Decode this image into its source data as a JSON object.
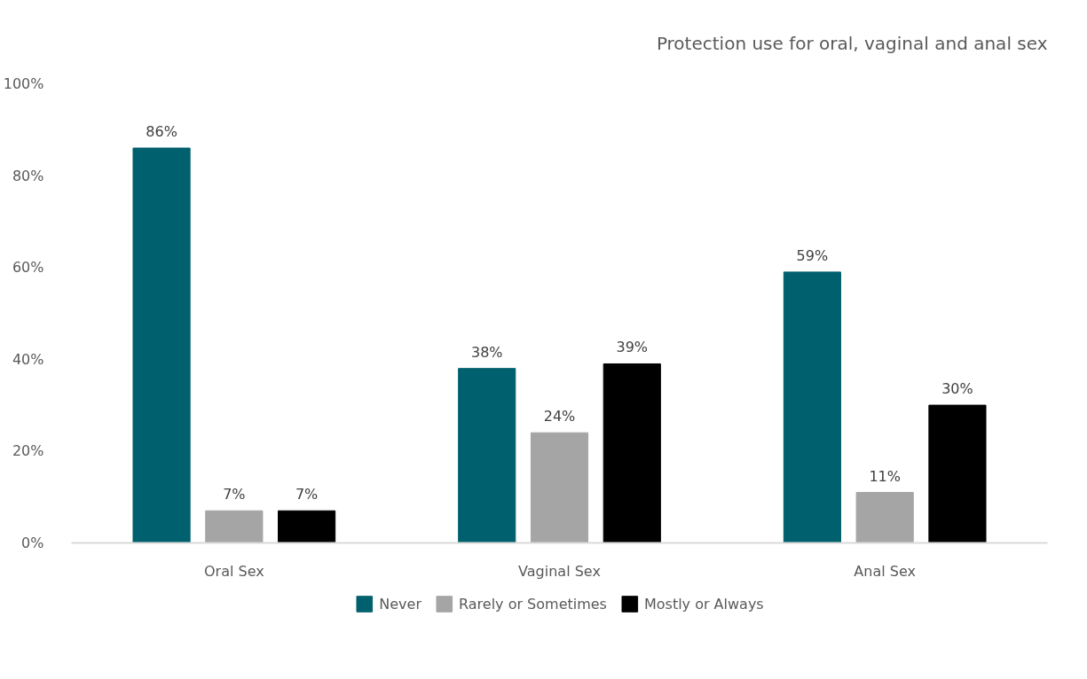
{
  "chart_data": {
    "type": "bar",
    "title": "Protection use for oral, vaginal and anal sex",
    "categories": [
      "Oral Sex",
      "Vaginal Sex",
      "Anal Sex"
    ],
    "series": [
      {
        "name": "Never",
        "color": "#00606e",
        "values": [
          86,
          38,
          59
        ],
        "value_labels": [
          "86%",
          "38%",
          "59%"
        ]
      },
      {
        "name": "Rarely or Sometimes",
        "color": "#a5a5a5",
        "values": [
          7,
          24,
          11
        ],
        "value_labels": [
          "7%",
          "24%",
          "11%"
        ]
      },
      {
        "name": "Mostly or Always",
        "color": "#000000",
        "values": [
          7,
          39,
          30
        ],
        "value_labels": [
          "7%",
          "39%",
          "30%"
        ]
      }
    ],
    "ylim": [
      0,
      100
    ],
    "yticks": [
      {
        "value": 0,
        "label": "0%"
      },
      {
        "value": 20,
        "label": "20%"
      },
      {
        "value": 40,
        "label": "40%"
      },
      {
        "value": 60,
        "label": "60%"
      },
      {
        "value": 80,
        "label": "80%"
      },
      {
        "value": 100,
        "label": "100%"
      }
    ],
    "legend": "bottom"
  }
}
